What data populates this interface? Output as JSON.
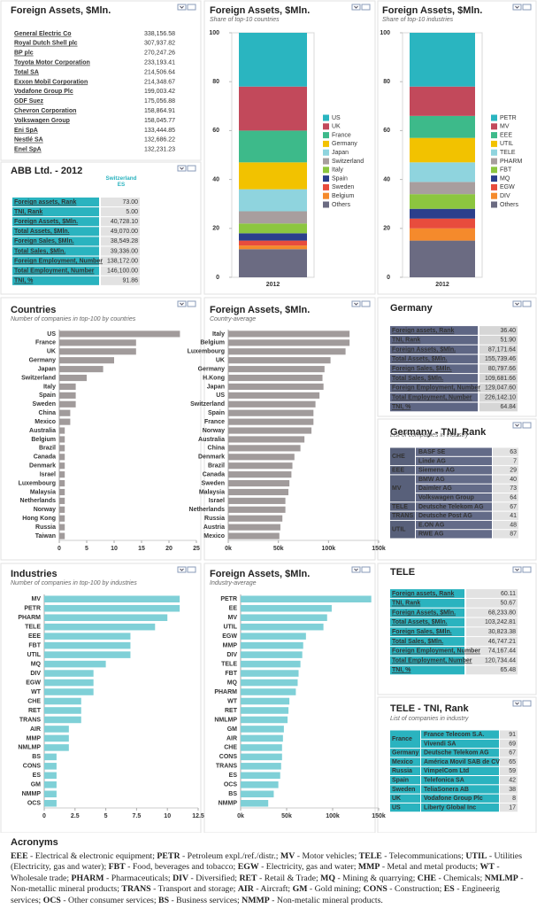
{
  "chart_data": [
    {
      "type": "stacked_bar",
      "title": "Foreign Assets, $Mln.",
      "subtitle": "Share of top-10 countries",
      "categories": [
        "2012"
      ],
      "series": [
        {
          "name": "US",
          "color": "#2ab5c0",
          "values": [
            22
          ]
        },
        {
          "name": "UK",
          "color": "#c2495b",
          "values": [
            18
          ]
        },
        {
          "name": "France",
          "color": "#3dba8a",
          "values": [
            13
          ]
        },
        {
          "name": "Germany",
          "color": "#f2c200",
          "values": [
            11
          ]
        },
        {
          "name": "Japan",
          "color": "#8fd4de",
          "values": [
            9
          ]
        },
        {
          "name": "Switzerland",
          "color": "#a89e9e",
          "values": [
            5
          ]
        },
        {
          "name": "Italy",
          "color": "#8cc63f",
          "values": [
            4
          ]
        },
        {
          "name": "Spain",
          "color": "#2b3f8c",
          "values": [
            3
          ]
        },
        {
          "name": "Sweden",
          "color": "#e84c3d",
          "values": [
            2
          ]
        },
        {
          "name": "Belgium",
          "color": "#f58a2c",
          "values": [
            1.5
          ]
        },
        {
          "name": "Others",
          "color": "#6b6b82",
          "values": [
            11.5
          ]
        }
      ],
      "ylim": [
        0,
        100
      ],
      "yticks": [
        0,
        20,
        40,
        60,
        80,
        100
      ]
    },
    {
      "type": "stacked_bar",
      "title": "Foreign Assets, $Mln.",
      "subtitle": "Share of top-10 industries",
      "categories": [
        "2012"
      ],
      "series": [
        {
          "name": "PETR",
          "color": "#2ab5c0",
          "values": [
            22
          ]
        },
        {
          "name": "MV",
          "color": "#c2495b",
          "values": [
            12
          ]
        },
        {
          "name": "EEE",
          "color": "#3dba8a",
          "values": [
            9
          ]
        },
        {
          "name": "UTIL",
          "color": "#f2c200",
          "values": [
            10
          ]
        },
        {
          "name": "TELE",
          "color": "#8fd4de",
          "values": [
            8
          ]
        },
        {
          "name": "PHARM",
          "color": "#a89e9e",
          "values": [
            5
          ]
        },
        {
          "name": "FBT",
          "color": "#8cc63f",
          "values": [
            6
          ]
        },
        {
          "name": "MQ",
          "color": "#2b3f8c",
          "values": [
            4
          ]
        },
        {
          "name": "EGW",
          "color": "#e84c3d",
          "values": [
            4
          ]
        },
        {
          "name": "DIV",
          "color": "#f58a2c",
          "values": [
            5
          ]
        },
        {
          "name": "Others",
          "color": "#6b6b82",
          "values": [
            15
          ]
        }
      ],
      "ylim": [
        0,
        100
      ],
      "yticks": [
        0,
        20,
        40,
        60,
        80,
        100
      ]
    },
    {
      "type": "hbar",
      "title": "Countries",
      "subtitle": "Number of companies in top-100 by countries",
      "color": "#a19b9b",
      "categories": [
        "US",
        "France",
        "UK",
        "Germany",
        "Japan",
        "Switzerland",
        "Italy",
        "Spain",
        "Sweden",
        "China",
        "Mexico",
        "Australia",
        "Belgium",
        "Brazil",
        "Canada",
        "Denmark",
        "Israel",
        "Luxembourg",
        "Malaysia",
        "Netherlands",
        "Norway",
        "Hong Kong",
        "Russia",
        "Taiwan"
      ],
      "values": [
        22,
        14,
        14,
        10,
        8,
        5,
        3,
        3,
        3,
        2,
        2,
        1,
        1,
        1,
        1,
        1,
        1,
        1,
        1,
        1,
        1,
        1,
        1,
        1
      ],
      "xlim": [
        0,
        25
      ],
      "xticks": [
        0,
        5,
        10,
        15,
        20,
        25
      ]
    },
    {
      "type": "hbar",
      "title": "Foreign Assets, $Mln.",
      "subtitle": "Country-average",
      "color": "#a19b9b",
      "categories": [
        "Italy",
        "Belgium",
        "Luxembourg",
        "UK",
        "Germany",
        "H.Kong",
        "Japan",
        "US",
        "Switzerland",
        "Spain",
        "France",
        "Norway",
        "Australia",
        "China",
        "Denmark",
        "Brazil",
        "Canada",
        "Sweden",
        "Malaysia",
        "Israel",
        "Netherlands",
        "Russia",
        "Austria",
        "Mexico"
      ],
      "values": [
        121000,
        121000,
        117000,
        102000,
        96000,
        94000,
        95000,
        91000,
        87000,
        85000,
        85000,
        83000,
        76000,
        72000,
        66000,
        64000,
        63000,
        61000,
        60000,
        57000,
        57000,
        54000,
        52000,
        51000
      ],
      "xlim": [
        0,
        150000
      ],
      "xticks": [
        {
          "value": 0,
          "label": "0k"
        },
        {
          "value": 50000,
          "label": "50k"
        },
        {
          "value": 100000,
          "label": "100k"
        },
        {
          "value": 150000,
          "label": "150k"
        }
      ]
    },
    {
      "type": "hbar",
      "title": "Industries",
      "subtitle": "Number of companies in top-100 by industries",
      "color": "#7fd0d7",
      "categories": [
        "MV",
        "PETR",
        "PHARM",
        "TELE",
        "EEE",
        "FBT",
        "UTIL",
        "MQ",
        "DIV",
        "EGW",
        "WT",
        "CHE",
        "RET",
        "TRANS",
        "AIR",
        "MMP",
        "NMLMP",
        "BS",
        "CONS",
        "ES",
        "GM",
        "NMMP",
        "OCS"
      ],
      "values": [
        11,
        11,
        10,
        9,
        7,
        7,
        7,
        5,
        4,
        4,
        4,
        3,
        3,
        3,
        2,
        2,
        2,
        1,
        1,
        1,
        1,
        1,
        1
      ],
      "xlim": [
        0,
        12.5
      ],
      "xticks": [
        0,
        2.5,
        5,
        7.5,
        10,
        12.5
      ]
    },
    {
      "type": "hbar",
      "title": "Foreign Assets, $Mln.",
      "subtitle": "Industry-average",
      "color": "#7fd0d7",
      "categories": [
        "PETR",
        "EE",
        "MV",
        "UTIL",
        "EGW",
        "MMP",
        "DIV",
        "TELE",
        "FBT",
        "MQ",
        "PHARM",
        "WT",
        "RET",
        "NMLMP",
        "GM",
        "AIR",
        "CHE",
        "CONS",
        "TRANS",
        "ES",
        "OCS",
        "BS",
        "NMMP"
      ],
      "values": [
        142000,
        99000,
        94000,
        90000,
        71000,
        68000,
        67000,
        65000,
        63000,
        62000,
        60000,
        53000,
        52000,
        51000,
        47000,
        46000,
        45000,
        45000,
        44000,
        43000,
        41000,
        36000,
        30000
      ],
      "xlim": [
        0,
        150000
      ],
      "xticks": [
        {
          "value": 0,
          "label": "0k"
        },
        {
          "value": 50000,
          "label": "50k"
        },
        {
          "value": 100000,
          "label": "100k"
        },
        {
          "value": 150000,
          "label": "150k"
        }
      ]
    }
  ],
  "tables": {
    "top_companies": {
      "title": "Foreign Assets, $Mln.",
      "rows": [
        [
          "General Electric Co",
          "338,156.58"
        ],
        [
          "Royal Dutch Shell plc",
          "307,937.82"
        ],
        [
          "BP plc",
          "270,247.26"
        ],
        [
          "Toyota Motor Corporation",
          "233,193.41"
        ],
        [
          "Total SA",
          "214,506.64"
        ],
        [
          "Exxon Mobil Corporation",
          "214,348.67"
        ],
        [
          "Vodafone Group Plc",
          "199,003.42"
        ],
        [
          "GDF Suez",
          "175,056.88"
        ],
        [
          "Chevron Corporation",
          "158,864.91"
        ],
        [
          "Volkswagen Group",
          "158,045.77"
        ],
        [
          "Eni SpA",
          "133,444.85"
        ],
        [
          "Nestlé SA",
          "132,686.22"
        ],
        [
          "Enel SpA",
          "132,231.23"
        ]
      ]
    },
    "abb": {
      "title": "ABB Ltd. - 2012",
      "header": "Switzerland ES",
      "rows": [
        [
          "Foreign assets, Rank",
          "73.00"
        ],
        [
          "TNI, Rank",
          "5.00"
        ],
        [
          "Foreign Assets, $Mln.",
          "40,728.10"
        ],
        [
          "Total Assets, $Mln.",
          "49,070.00"
        ],
        [
          "Foreign Sales, $Mln.",
          "38,549.28"
        ],
        [
          "Total Sales, $Mln.",
          "39,336.00"
        ],
        [
          "Foreign Employment, Number",
          "138,172.00"
        ],
        [
          "Total Employment, Number",
          "146,100.00"
        ],
        [
          "TNI, %",
          "91.86"
        ]
      ]
    },
    "germany": {
      "title": "Germany",
      "rows": [
        [
          "Foreign assets, Rank",
          "36.40"
        ],
        [
          "TNI, Rank",
          "51.90"
        ],
        [
          "Foreign Assets, $Mln.",
          "87,171.64"
        ],
        [
          "Total Assets, $Mln.",
          "155,739.46"
        ],
        [
          "Foreign Sales, $Mln.",
          "80,797.66"
        ],
        [
          "Total Sales, $Mln.",
          "109,681.66"
        ],
        [
          "Foreign Employment, Number",
          "129,047.60"
        ],
        [
          "Total Employment, Number",
          "226,142.10"
        ],
        [
          "TNI, %",
          "64.84"
        ]
      ]
    },
    "germany_tni": {
      "title": "Germany - TNI, Rank",
      "subtitle": "List of companies in industry",
      "groups": [
        {
          "group": "CHE",
          "rows": [
            [
              "BASF SE",
              "63"
            ],
            [
              "Linde AG",
              "7"
            ]
          ]
        },
        {
          "group": "EEE",
          "rows": [
            [
              "Siemens AG",
              "29"
            ]
          ]
        },
        {
          "group": "MV",
          "rows": [
            [
              "BMW AG",
              "40"
            ],
            [
              "Daimler AG",
              "73"
            ],
            [
              "Volkswagen Group",
              "64"
            ]
          ]
        },
        {
          "group": "TELE",
          "rows": [
            [
              "Deutsche Telekom AG",
              "67"
            ]
          ]
        },
        {
          "group": "TRANS",
          "rows": [
            [
              "Deutsche Post AG",
              "41"
            ]
          ]
        },
        {
          "group": "UTIL",
          "rows": [
            [
              "E.ON AG",
              "48"
            ],
            [
              "RWE AG",
              "87"
            ]
          ]
        }
      ]
    },
    "tele": {
      "title": "TELE",
      "rows": [
        [
          "Foreign assets, Rank",
          "60.11"
        ],
        [
          "TNI, Rank",
          "50.67"
        ],
        [
          "Foreign Assets, $Mln.",
          "68,233.80"
        ],
        [
          "Total Assets, $Mln.",
          "103,242.81"
        ],
        [
          "Foreign Sales, $Mln.",
          "30,823.38"
        ],
        [
          "Total Sales, $Mln.",
          "46,747.21"
        ],
        [
          "Foreign Employment, Number",
          "74,167.44"
        ],
        [
          "Total Employment, Number",
          "120,734.44"
        ],
        [
          "TNI, %",
          "65.48"
        ]
      ]
    },
    "tele_tni": {
      "title": "TELE - TNI, Rank",
      "subtitle": "List of companies in industry",
      "groups": [
        {
          "group": "France",
          "rows": [
            [
              "France Telecom S.A.",
              "91"
            ],
            [
              "Vivendi SA",
              "69"
            ]
          ]
        },
        {
          "group": "Germany",
          "rows": [
            [
              "Deutsche Telekom AG",
              "67"
            ]
          ]
        },
        {
          "group": "Mexico",
          "rows": [
            [
              "América Movil SAB de CV",
              "65"
            ]
          ]
        },
        {
          "group": "Russia",
          "rows": [
            [
              "VimpelCom Ltd",
              "59"
            ]
          ]
        },
        {
          "group": "Spain",
          "rows": [
            [
              "Telefonica SA",
              "42"
            ]
          ]
        },
        {
          "group": "Sweden",
          "rows": [
            [
              "TeliaSonera AB",
              "38"
            ]
          ]
        },
        {
          "group": "UK",
          "rows": [
            [
              "Vodafone Group Plc",
              "8"
            ]
          ]
        },
        {
          "group": "US",
          "rows": [
            [
              "Liberty Global Inc",
              "17"
            ]
          ]
        }
      ]
    }
  },
  "acronyms": {
    "title": "Acronyms",
    "items": [
      {
        "code": "EEE",
        "text": "- Electrical & electronic equipment;"
      },
      {
        "code": "PETR",
        "text": "- Petroleum expl./ref./distr.;"
      },
      {
        "code": "MV",
        "text": "- Motor vehicles;"
      },
      {
        "code": "TELE",
        "text": "- Telecommunications;"
      },
      {
        "code": "UTIL",
        "text": "- Utilities (Electricity, gas and water);"
      },
      {
        "code": "FBT",
        "text": "- Food, beverages and tobacco;"
      },
      {
        "code": "EGW",
        "text": "- Electricity, gas and water;"
      },
      {
        "code": "MMP",
        "text": "- Metal and metal products;"
      },
      {
        "code": "WT",
        "text": "- Wholesale trade;"
      },
      {
        "code": "PHARM",
        "text": "- Pharmaceuticals;"
      },
      {
        "code": "DIV",
        "text": "- Diversified;"
      },
      {
        "code": "RET",
        "text": "- Retail & Trade;"
      },
      {
        "code": "MQ",
        "text": "- Mining & quarrying;"
      },
      {
        "code": "CHE",
        "text": "- Chemicals;"
      },
      {
        "code": "NMLMP",
        "text": "- Non-metallic mineral products;"
      },
      {
        "code": "TRANS",
        "text": "- Transport and storage;"
      },
      {
        "code": "AIR",
        "text": "- Aircraft;"
      },
      {
        "code": "GM",
        "text": "- Gold mining;"
      },
      {
        "code": "CONS",
        "text": "- Construction;"
      },
      {
        "code": "ES",
        "text": "- Engineerig services;"
      },
      {
        "code": "OCS",
        "text": "- Other consumer services;"
      },
      {
        "code": "BS",
        "text": "- Business services;"
      },
      {
        "code": "NMMP",
        "text": "- Non-metalic mineral products."
      }
    ]
  }
}
